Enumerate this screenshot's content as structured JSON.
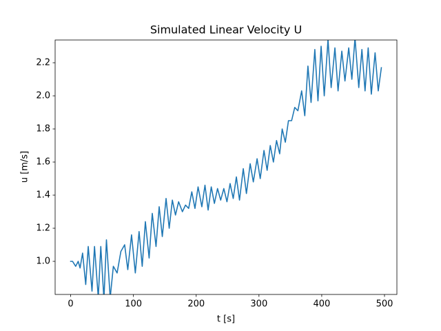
{
  "chart_data": {
    "type": "line",
    "title": "Simulated Linear Velocity U",
    "xlabel": "t [s]",
    "ylabel": "u [m/s]",
    "x": [
      0,
      3,
      8,
      12,
      15,
      19,
      24,
      28,
      34,
      38,
      44,
      48,
      53,
      57,
      63,
      68,
      74,
      80,
      86,
      91,
      97,
      103,
      109,
      114,
      119,
      125,
      130,
      136,
      141,
      146,
      152,
      157,
      162,
      167,
      172,
      178,
      183,
      188,
      193,
      198,
      203,
      209,
      214,
      219,
      224,
      229,
      234,
      239,
      244,
      249,
      254,
      259,
      264,
      269,
      275,
      280,
      286,
      291,
      297,
      302,
      308,
      313,
      318,
      323,
      328,
      333,
      337,
      342,
      347,
      352,
      357,
      362,
      368,
      373,
      378,
      383,
      389,
      394,
      399,
      404,
      410,
      415,
      421,
      426,
      432,
      437,
      443,
      448,
      453,
      459,
      464,
      469,
      474,
      479,
      485,
      490,
      495
    ],
    "series": [
      {
        "name": "u",
        "color": "#1f77b4",
        "values": [
          1.0,
          1.0,
          0.97,
          1.0,
          0.96,
          1.05,
          0.86,
          1.09,
          0.82,
          1.09,
          0.78,
          1.09,
          0.77,
          1.13,
          0.78,
          0.97,
          0.93,
          1.06,
          1.1,
          0.95,
          1.16,
          0.93,
          1.18,
          0.97,
          1.24,
          1.02,
          1.29,
          1.09,
          1.33,
          1.15,
          1.38,
          1.2,
          1.37,
          1.28,
          1.36,
          1.3,
          1.34,
          1.32,
          1.42,
          1.32,
          1.45,
          1.33,
          1.46,
          1.31,
          1.45,
          1.35,
          1.44,
          1.37,
          1.44,
          1.36,
          1.47,
          1.38,
          1.51,
          1.37,
          1.56,
          1.41,
          1.59,
          1.48,
          1.62,
          1.5,
          1.67,
          1.55,
          1.7,
          1.6,
          1.73,
          1.65,
          1.8,
          1.72,
          1.85,
          1.85,
          1.93,
          1.91,
          2.03,
          1.88,
          2.18,
          1.96,
          2.28,
          1.97,
          2.3,
          2.0,
          2.34,
          2.05,
          2.29,
          2.03,
          2.27,
          2.09,
          2.29,
          2.1,
          2.35,
          2.05,
          2.28,
          2.03,
          2.29,
          2.01,
          2.26,
          2.03,
          2.17
        ]
      }
    ],
    "xlim": [
      -24.75,
      519.75
    ],
    "xticks": [
      0,
      100,
      200,
      300,
      400,
      500
    ],
    "ylim": [
      0.8,
      2.3375
    ],
    "yticks": [
      {
        "value": 1.0,
        "label": "1.0"
      },
      {
        "value": 1.2,
        "label": "1.2"
      },
      {
        "value": 1.4,
        "label": "1.4"
      },
      {
        "value": 1.6,
        "label": "1.6"
      },
      {
        "value": 1.8,
        "label": "1.8"
      },
      {
        "value": 2.0,
        "label": "2.0"
      },
      {
        "value": 2.2,
        "label": "2.2"
      }
    ],
    "grid": false
  }
}
